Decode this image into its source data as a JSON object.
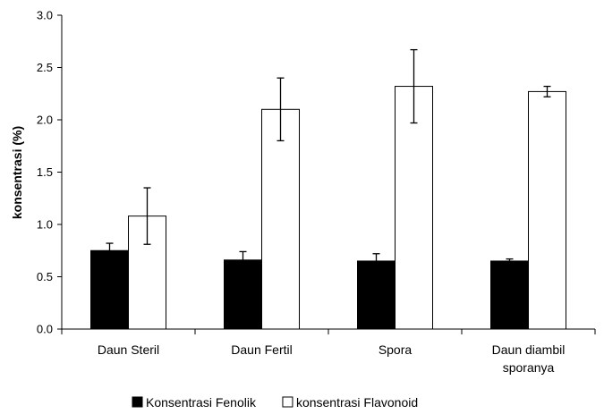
{
  "chart_data": {
    "type": "bar",
    "ylabel": "konsentrasi (%)",
    "xlabel": "",
    "ylim": [
      0,
      3.0
    ],
    "yticks": [
      "0.0",
      "0.5",
      "1.0",
      "1.5",
      "2.0",
      "2.5",
      "3.0"
    ],
    "categories": [
      [
        "Daun Steril"
      ],
      [
        "Daun Fertil"
      ],
      [
        "Spora"
      ],
      [
        "Daun diambil",
        "sporanya"
      ]
    ],
    "series": [
      {
        "name": "Konsentrasi Fenolik",
        "fill": "#000000",
        "values": [
          0.75,
          0.66,
          0.65,
          0.65
        ],
        "errors": [
          0.07,
          0.08,
          0.07,
          0.02
        ]
      },
      {
        "name": "konsentrasi Flavonoid",
        "fill": "#ffffff",
        "values": [
          1.08,
          2.1,
          2.32,
          2.27
        ],
        "errors": [
          0.27,
          0.3,
          0.35,
          0.05
        ]
      }
    ],
    "grid": false,
    "legend_position": "bottom"
  }
}
